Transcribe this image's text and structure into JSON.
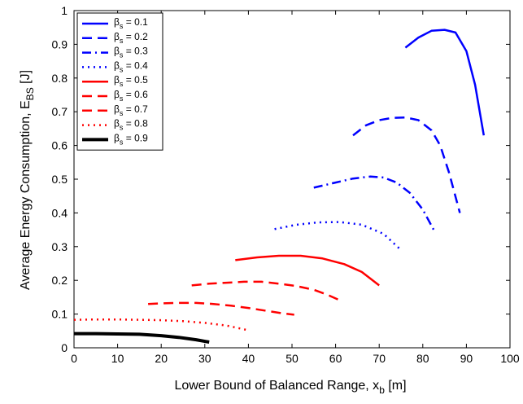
{
  "chart_data": {
    "type": "line",
    "title": "",
    "xlabel": {
      "main": "Lower Bound of Balanced Range, x",
      "sub": "b",
      "unit": " [m]"
    },
    "ylabel": {
      "main": "Average Energy Consumption, E",
      "sub": "BS",
      "unit": " [J]"
    },
    "xlim": [
      0,
      100
    ],
    "ylim": [
      0,
      1
    ],
    "xticks": [
      0,
      10,
      20,
      30,
      40,
      50,
      60,
      70,
      80,
      90,
      100
    ],
    "yticks": [
      0,
      0.1,
      0.2,
      0.3,
      0.4,
      0.5,
      0.6,
      0.7,
      0.8,
      0.9,
      1
    ],
    "ytick_labels": [
      "0",
      "0.1",
      "0.2",
      "0.3",
      "0.4",
      "0.5",
      "0.6",
      "0.7",
      "0.8",
      "0.9",
      "1"
    ],
    "grid": false,
    "legend_position": "top-left",
    "series": [
      {
        "name": "0.1",
        "legend_prefix": "β",
        "legend_sub": "s",
        "color": "#0000ff",
        "style": "solid",
        "x": [
          76,
          79,
          82,
          85,
          87.5,
          90,
          92,
          94
        ],
        "y": [
          0.89,
          0.92,
          0.94,
          0.943,
          0.935,
          0.88,
          0.78,
          0.63
        ]
      },
      {
        "name": "0.2",
        "legend_prefix": "β",
        "legend_sub": "s",
        "color": "#0000ff",
        "style": "dashed",
        "x": [
          64,
          67,
          70,
          73,
          76,
          79,
          82,
          84,
          86,
          88.5
        ],
        "y": [
          0.63,
          0.66,
          0.675,
          0.682,
          0.683,
          0.675,
          0.645,
          0.6,
          0.52,
          0.4
        ]
      },
      {
        "name": "0.3",
        "legend_prefix": "β",
        "legend_sub": "s",
        "color": "#0000ff",
        "style": "dashdot",
        "x": [
          55,
          60,
          64,
          68,
          71,
          74,
          77,
          80,
          82.5
        ],
        "y": [
          0.475,
          0.49,
          0.502,
          0.508,
          0.505,
          0.49,
          0.46,
          0.41,
          0.35
        ]
      },
      {
        "name": "0.4",
        "legend_prefix": "β",
        "legend_sub": "s",
        "color": "#0000ff",
        "style": "dotted",
        "x": [
          46,
          51,
          56,
          61,
          66,
          71,
          75
        ],
        "y": [
          0.352,
          0.365,
          0.372,
          0.373,
          0.365,
          0.338,
          0.29
        ]
      },
      {
        "name": "0.5",
        "legend_prefix": "β",
        "legend_sub": "s",
        "color": "#ff0000",
        "style": "solid",
        "x": [
          37,
          42,
          47,
          52,
          57,
          62,
          66,
          70
        ],
        "y": [
          0.26,
          0.268,
          0.273,
          0.273,
          0.265,
          0.248,
          0.225,
          0.185
        ]
      },
      {
        "name": "0.6",
        "legend_prefix": "β",
        "legend_sub": "s",
        "color": "#ff0000",
        "style": "dashed",
        "x": [
          27,
          31,
          35,
          39,
          43,
          47,
          51,
          55,
          58,
          61.5
        ],
        "y": [
          0.185,
          0.19,
          0.193,
          0.196,
          0.196,
          0.19,
          0.183,
          0.172,
          0.158,
          0.138
        ]
      },
      {
        "name": "0.7",
        "legend_prefix": "β",
        "legend_sub": "s",
        "color": "#ff0000",
        "style": "dashed",
        "x": [
          17,
          20,
          24,
          28,
          32,
          36,
          40,
          44,
          48,
          50.5
        ],
        "y": [
          0.13,
          0.132,
          0.133,
          0.133,
          0.13,
          0.125,
          0.118,
          0.11,
          0.102,
          0.098
        ]
      },
      {
        "name": "0.8",
        "legend_prefix": "β",
        "legend_sub": "s",
        "color": "#ff0000",
        "style": "dotted",
        "x": [
          0,
          5,
          10,
          15,
          20,
          25,
          30,
          35,
          40
        ],
        "y": [
          0.083,
          0.084,
          0.084,
          0.083,
          0.082,
          0.079,
          0.074,
          0.066,
          0.052
        ]
      },
      {
        "name": "0.9",
        "legend_prefix": "β",
        "legend_sub": "s",
        "color": "#000000",
        "style": "solid_thick",
        "x": [
          0,
          5,
          10,
          15,
          20,
          24,
          28,
          31
        ],
        "y": [
          0.042,
          0.042,
          0.041,
          0.04,
          0.036,
          0.031,
          0.024,
          0.017
        ]
      }
    ]
  }
}
